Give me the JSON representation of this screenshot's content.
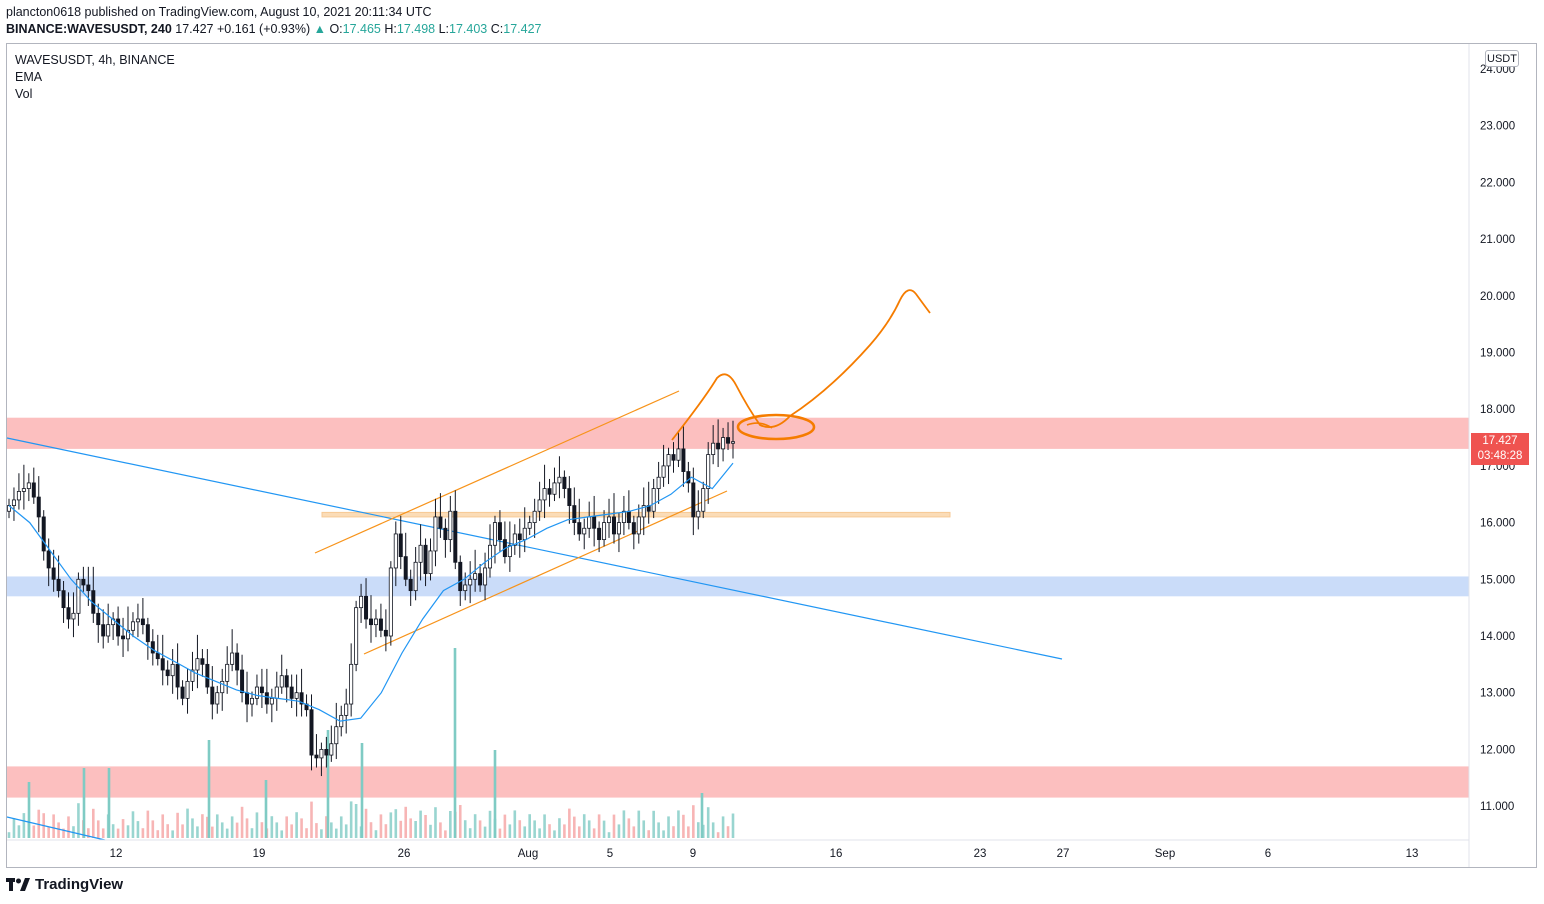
{
  "header": {
    "published_line": "plancton0618 published on TradingView.com, August 10, 2021 20:11:34 UTC",
    "symbol_full": "BINANCE:WAVESUSDT, 240",
    "last": "17.427",
    "change_arrow": "▲",
    "change": "+0.161 (+0.93%)",
    "o_label": "O:",
    "o_value": "17.465",
    "h_label": "H:",
    "h_value": "17.498",
    "l_label": "L:",
    "l_value": "17.403",
    "c_label": "C:",
    "c_value": "17.427"
  },
  "legend": {
    "symbol": "WAVESUSDT, 4h, BINANCE",
    "ema": "EMA",
    "vol": "Vol"
  },
  "price_axis": {
    "unit": "USDT",
    "current_price": "17.427",
    "countdown": "03:48:28"
  },
  "footer": {
    "logo_text": "TradingView",
    "logo_icon": "tradingview-logo-icon"
  },
  "colors": {
    "up": "#26a69a",
    "down": "#ef5350",
    "candle": "#131722",
    "ema": "#2196f3",
    "trend": "#2196f3",
    "channel": "#f7931a",
    "projection": "#f57c00",
    "red_zone": "#fcb8b8",
    "blue_zone": "#c4d8f8",
    "orange_zone": "#fbd9b0"
  },
  "chart_data": {
    "type": "candlestick",
    "title": "",
    "ylim": [
      10.4,
      24.4
    ],
    "y_ticks": [
      "11.000",
      "12.000",
      "13.000",
      "14.000",
      "15.000",
      "16.000",
      "17.000",
      "18.000",
      "19.000",
      "20.000",
      "21.000",
      "22.000",
      "23.000",
      "24.000"
    ],
    "x_ticks": [
      "12",
      "19",
      "26",
      "Aug",
      "5",
      "9",
      "16",
      "23",
      "27",
      "Sep",
      "6",
      "13"
    ],
    "grid": false,
    "zones": [
      {
        "kind": "resistance",
        "from": 17.3,
        "to": 17.85
      },
      {
        "kind": "support",
        "from": 14.7,
        "to": 15.05
      },
      {
        "kind": "support",
        "from": 11.15,
        "to": 11.7
      },
      {
        "kind": "level",
        "from": 16.1,
        "to": 16.18
      }
    ],
    "drawings": [
      "descending trend line",
      "ascending channel",
      "projected price path to 20.1"
    ],
    "candle_series_close": [
      16.3,
      16.4,
      16.55,
      16.6,
      16.7,
      16.45,
      16.1,
      15.5,
      15.2,
      15.0,
      14.8,
      14.5,
      14.3,
      14.4,
      15.0,
      14.9,
      14.8,
      14.4,
      14.2,
      14.0,
      14.2,
      14.3,
      14.0,
      13.95,
      14.1,
      14.25,
      14.3,
      14.2,
      13.9,
      13.7,
      13.6,
      13.4,
      13.3,
      13.5,
      13.1,
      12.9,
      13.2,
      13.4,
      13.6,
      13.5,
      13.1,
      12.8,
      13.0,
      13.2,
      13.5,
      13.7,
      13.4,
      13.0,
      12.8,
      12.9,
      13.1,
      13.0,
      12.8,
      12.9,
      13.1,
      13.3,
      13.1,
      12.9,
      13.0,
      12.8,
      12.7,
      11.9,
      11.85,
      12.0,
      11.9,
      12.1,
      12.4,
      12.6,
      12.8,
      13.5,
      14.5,
      14.7,
      14.3,
      14.2,
      14.3,
      14.1,
      14.0,
      15.2,
      15.8,
      15.4,
      15.0,
      14.8,
      15.3,
      15.6,
      15.1,
      15.5,
      16.1,
      15.9,
      15.7,
      16.2,
      15.3,
      14.8,
      14.9,
      15.0,
      15.1,
      14.9,
      15.2,
      15.6,
      16.0,
      15.7,
      15.4,
      15.6,
      15.8,
      15.7,
      15.9,
      16.0,
      16.2,
      16.4,
      16.6,
      16.5,
      16.7,
      16.8,
      16.6,
      16.3,
      16.0,
      15.8,
      15.9,
      16.1,
      15.9,
      15.7,
      16.0,
      16.1,
      15.8,
      16.0,
      16.2,
      16.0,
      15.8,
      16.1,
      16.3,
      16.2,
      16.6,
      16.8,
      17.0,
      17.2,
      17.1,
      17.3,
      16.9,
      16.7,
      16.1,
      16.2,
      16.6,
      17.2,
      17.4,
      17.3,
      17.5,
      17.4,
      17.427
    ],
    "ema_path": [
      16.3,
      16.0,
      15.5,
      15.0,
      14.6,
      14.3,
      14.0,
      13.75,
      13.55,
      13.35,
      13.2,
      13.05,
      12.95,
      12.9,
      12.85,
      12.7,
      12.5,
      12.55,
      13.0,
      13.7,
      14.3,
      14.8,
      15.0,
      15.3,
      15.55,
      15.7,
      15.9,
      16.05,
      16.1,
      16.15,
      16.2,
      16.3,
      16.5,
      16.8,
      16.6,
      17.05
    ]
  }
}
